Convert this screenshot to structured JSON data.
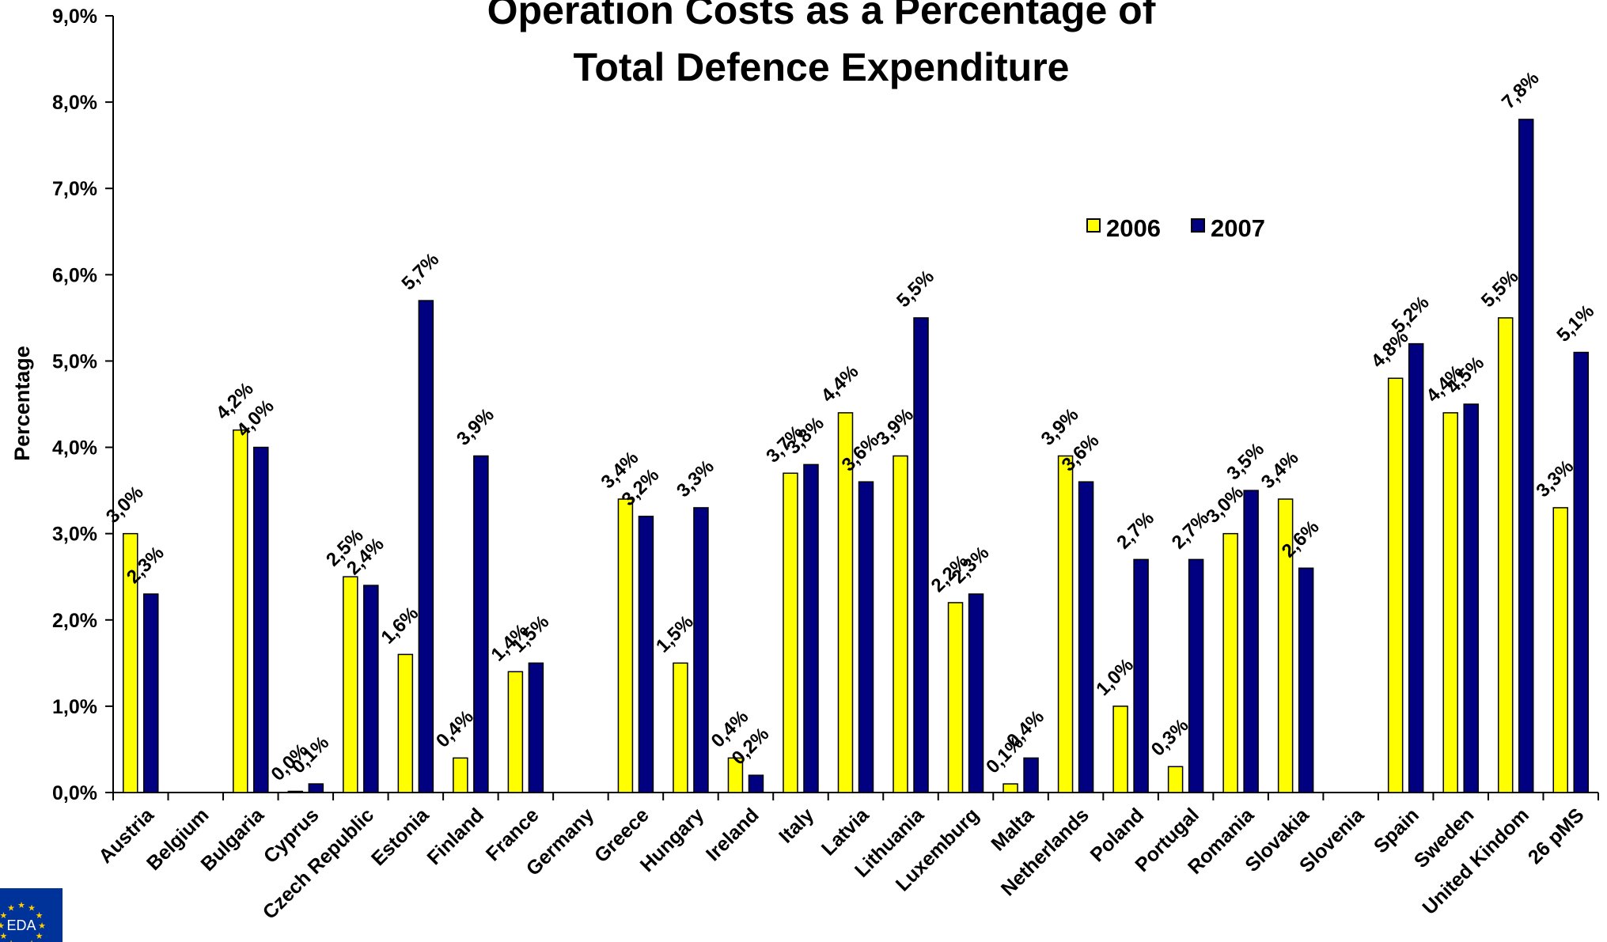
{
  "chart_data": {
    "type": "bar",
    "title": "Operation Costs as a Percentage of Total Defence Expenditure",
    "title_lines": [
      "Operation Costs as a Percentage of",
      "Total Defence Expenditure"
    ],
    "xlabel": "",
    "ylabel": "Percentage",
    "ylim": [
      0,
      9
    ],
    "yticks": [
      0,
      1,
      2,
      3,
      4,
      5,
      6,
      7,
      8,
      9
    ],
    "ytick_labels": [
      "0,0%",
      "1,0%",
      "2,0%",
      "3,0%",
      "4,0%",
      "5,0%",
      "6,0%",
      "7,0%",
      "8,0%",
      "9,0%"
    ],
    "grid": false,
    "legend_position": "top-right",
    "categories": [
      "Austria",
      "Belgium",
      "Bulgaria",
      "Cyprus",
      "Czech Republic",
      "Estonia",
      "Finland",
      "France",
      "Germany",
      "Greece",
      "Hungary",
      "Ireland",
      "Italy",
      "Latvia",
      "Lithuania",
      "Luxemburg",
      "Malta",
      "Netherlands",
      "Poland",
      "Portugal",
      "Romania",
      "Slovakia",
      "Slovenia",
      "Spain",
      "Sweden",
      "United Kindom",
      "26 pMS"
    ],
    "series": [
      {
        "name": "2006",
        "color": "#ffff00",
        "values": [
          3.0,
          null,
          4.2,
          0.0,
          2.5,
          1.6,
          0.4,
          1.4,
          null,
          3.4,
          1.5,
          0.4,
          3.7,
          4.4,
          3.9,
          2.2,
          0.1,
          3.9,
          1.0,
          0.3,
          3.0,
          3.4,
          null,
          4.8,
          4.4,
          5.5,
          3.3
        ],
        "labels": [
          "3,0%",
          "",
          "4,2%",
          "0,0%",
          "2,5%",
          "1,6%",
          "0,4%",
          "1,4%",
          "",
          "3,4%",
          "1,5%",
          "0,4%",
          "3,7%",
          "4,4%",
          "3,9%",
          "2,2%",
          "0,1%",
          "3,9%",
          "1,0%",
          "0,3%",
          "3,0%",
          "3,4%",
          "",
          "4,8%",
          "4,4%",
          "5,5%",
          "3,3%"
        ]
      },
      {
        "name": "2007",
        "color": "#000080",
        "values": [
          2.3,
          null,
          4.0,
          0.1,
          2.4,
          5.7,
          3.9,
          1.5,
          null,
          3.2,
          3.3,
          0.2,
          3.8,
          3.6,
          5.5,
          2.3,
          0.4,
          3.6,
          2.7,
          2.7,
          3.5,
          2.6,
          null,
          5.2,
          4.5,
          7.8,
          5.1
        ],
        "labels": [
          "2,3%",
          "",
          "4,0%",
          "0,1%",
          "2,4%",
          "5,7%",
          "3,9%",
          "1,5%",
          "",
          "3,2%",
          "3,3%",
          "0,2%",
          "3,8%",
          "3,6%",
          "5,5%",
          "2,3%",
          "0,4%",
          "3,6%",
          "2,7%",
          "2,7%",
          "3,5%",
          "2,6%",
          "",
          "5,2%",
          "4,5%",
          "7,8%",
          "5,1%"
        ]
      }
    ]
  },
  "logo": {
    "text": "EDA",
    "color": "#003399"
  }
}
